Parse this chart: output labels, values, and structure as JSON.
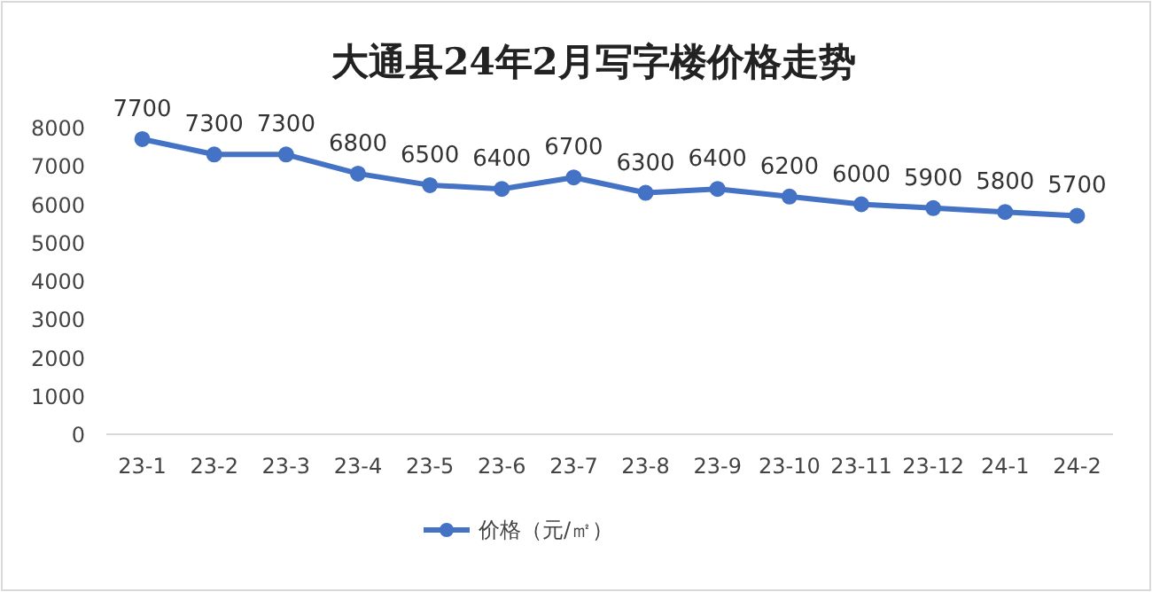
{
  "chart_data": {
    "type": "line",
    "title": "大通县24年2月写字楼价格走势",
    "categories": [
      "23-1",
      "23-2",
      "23-3",
      "23-4",
      "23-5",
      "23-6",
      "23-7",
      "23-8",
      "23-9",
      "23-10",
      "23-11",
      "23-12",
      "24-1",
      "24-2"
    ],
    "series": [
      {
        "name": "价格（元/㎡）",
        "color": "#4472c4",
        "values": [
          7700,
          7300,
          7300,
          6800,
          6500,
          6400,
          6700,
          6300,
          6400,
          6200,
          6000,
          5900,
          5800,
          5700
        ]
      }
    ],
    "ylim": [
      0,
      8000
    ],
    "yticks": [
      0,
      1000,
      2000,
      3000,
      4000,
      5000,
      6000,
      7000,
      8000
    ],
    "marker": "circle",
    "line_style": "solid",
    "data_labels": true,
    "legend": "bottom",
    "grid": false
  }
}
